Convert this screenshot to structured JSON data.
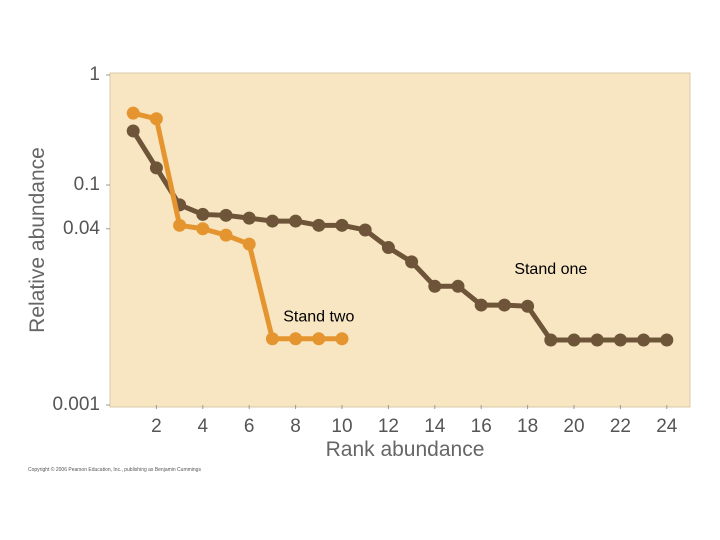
{
  "chart_data": {
    "type": "line",
    "x_label": "Rank abundance",
    "y_label": "Relative abundance",
    "log_y": true,
    "grid": false,
    "xlim": [
      0,
      25
    ],
    "xticks": [
      2,
      4,
      6,
      8,
      10,
      12,
      14,
      16,
      18,
      20,
      22,
      24
    ],
    "ylim": [
      0.001,
      1
    ],
    "yticks": [
      1,
      0.1,
      0.04,
      0.001
    ],
    "x": [
      1,
      2,
      3,
      4,
      5,
      6,
      7,
      8,
      9,
      10,
      11,
      12,
      13,
      14,
      15,
      16,
      17,
      18,
      19,
      20,
      21,
      22,
      23,
      24
    ],
    "series": [
      {
        "name": "Stand one",
        "color": "#6e5539",
        "values": [
          0.31,
          0.143,
          0.066,
          0.054,
          0.053,
          0.05,
          0.047,
          0.047,
          0.043,
          0.043,
          0.039,
          0.027,
          0.02,
          0.012,
          0.012,
          0.0081,
          0.0081,
          0.0079,
          0.0039,
          0.0039,
          0.0039,
          0.0039,
          0.0039,
          0.0039
        ]
      },
      {
        "name": "Stand two",
        "color": "#e5952f",
        "values": [
          0.45,
          0.4,
          0.043,
          0.04,
          0.035,
          0.029,
          0.004,
          0.004,
          0.004,
          0.004,
          null,
          null,
          null,
          null,
          null,
          null,
          null,
          null,
          null,
          null,
          null,
          null,
          null,
          null
        ]
      }
    ],
    "annotations": [
      {
        "text": "Stand one",
        "x": 19,
        "y": 0.017
      },
      {
        "text": "Stand two",
        "x": 9,
        "y": 0.0063
      }
    ],
    "footer": "Copyright © 2006 Pearson Education, Inc., publishing as Benjamin Cummings"
  }
}
